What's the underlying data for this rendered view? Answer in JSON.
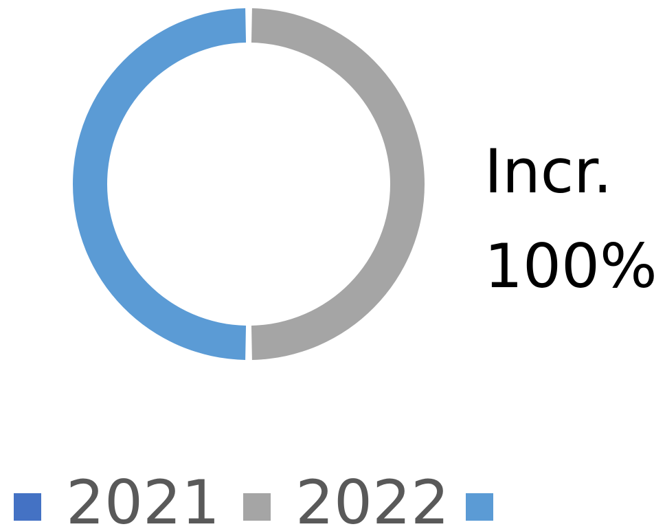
{
  "chart_data": {
    "type": "pie",
    "variant": "donut",
    "series": [
      {
        "name": "2021",
        "value": 0,
        "color": "#4472C4"
      },
      {
        "name": "2022",
        "value": 50,
        "color": "#A5A5A5"
      },
      {
        "name": "",
        "value": 50,
        "color": "#5B9BD5"
      }
    ],
    "label": {
      "line1": "Incr.",
      "line2": "100%"
    },
    "legend_position": "bottom"
  }
}
